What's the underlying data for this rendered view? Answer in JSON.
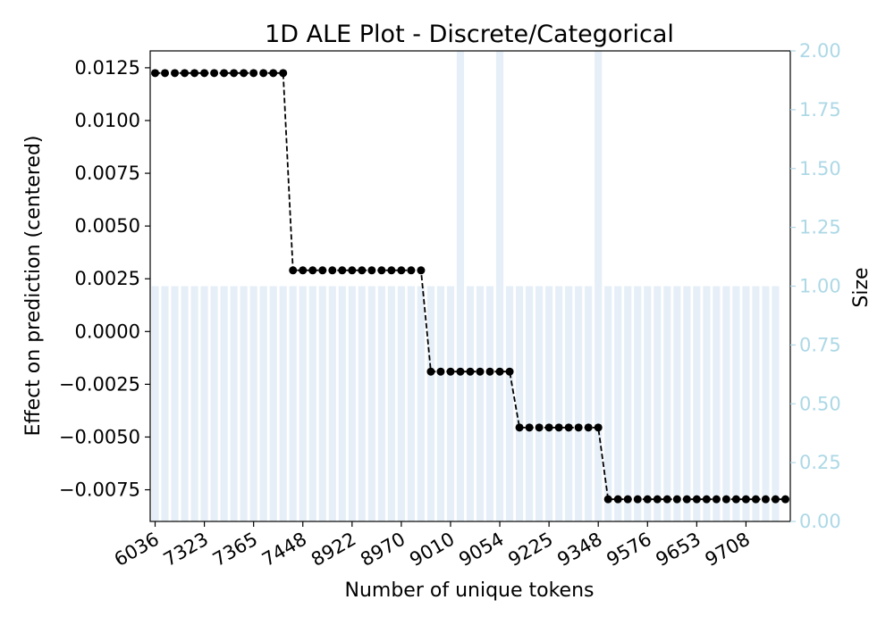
{
  "chart_data": {
    "type": "line",
    "title": "1D ALE Plot - Discrete/Categorical",
    "xlabel": "Number of unique tokens",
    "ylabel": "Effect on prediction (centered)",
    "y2label": "Size",
    "x_tick_labels": [
      "6036",
      "7323",
      "7365",
      "7448",
      "8922",
      "8970",
      "9010",
      "9054",
      "9225",
      "9348",
      "9576",
      "9653",
      "9708"
    ],
    "ylim": [
      -0.009,
      0.0133
    ],
    "y_ticks": [
      -0.0075,
      -0.005,
      -0.0025,
      0.0,
      0.0025,
      0.005,
      0.0075,
      0.01,
      0.0125
    ],
    "y_tick_labels": [
      "−0.0075",
      "−0.0050",
      "−0.0025",
      "0.0000",
      "0.0025",
      "0.0050",
      "0.0075",
      "0.0100",
      "0.0125"
    ],
    "y2lim": [
      0,
      2.0
    ],
    "y2_ticks": [
      0.0,
      0.25,
      0.5,
      0.75,
      1.0,
      1.25,
      1.5,
      1.75,
      2.0
    ],
    "y2_tick_labels": [
      "0.00",
      "0.25",
      "0.50",
      "0.75",
      "1.00",
      "1.25",
      "1.50",
      "1.75",
      "2.00"
    ],
    "series": [
      {
        "type": "line",
        "values": [
          0.01225,
          0.01225,
          0.01225,
          0.01225,
          0.01225,
          0.01225,
          0.01225,
          0.01225,
          0.01225,
          0.01225,
          0.01225,
          0.01225,
          0.01225,
          0.01225,
          0.0029,
          0.0029,
          0.0029,
          0.0029,
          0.0029,
          0.0029,
          0.0029,
          0.0029,
          0.0029,
          0.0029,
          0.0029,
          0.0029,
          0.0029,
          0.0029,
          -0.0019,
          -0.0019,
          -0.0019,
          -0.0019,
          -0.0019,
          -0.0019,
          -0.0019,
          -0.0019,
          -0.0019,
          -0.00455,
          -0.00455,
          -0.00455,
          -0.00455,
          -0.00455,
          -0.00455,
          -0.00455,
          -0.00455,
          -0.00455,
          -0.00795,
          -0.00795,
          -0.00795,
          -0.00795,
          -0.00795,
          -0.00795,
          -0.00795,
          -0.00795,
          -0.00795,
          -0.00795,
          -0.00795,
          -0.00795,
          -0.00795,
          -0.00795,
          -0.00795,
          -0.00795,
          -0.00795,
          -0.00795,
          -0.00795
        ]
      },
      {
        "type": "bar",
        "axis": "right",
        "values": [
          1,
          1,
          1,
          1,
          1,
          1,
          1,
          1,
          1,
          1,
          1,
          1,
          1,
          1,
          1,
          1,
          1,
          1,
          1,
          1,
          1,
          1,
          1,
          1,
          1,
          1,
          1,
          1,
          1,
          1,
          1,
          2,
          1,
          1,
          1,
          2,
          1,
          1,
          1,
          1,
          1,
          1,
          1,
          1,
          1,
          2,
          1,
          1,
          1,
          1,
          1,
          1,
          1,
          1,
          1,
          1,
          1,
          1,
          1,
          1,
          1,
          1,
          1,
          1
        ]
      }
    ],
    "colors": {
      "line": "#000000",
      "bars": "#e6eff7",
      "right_axis": "#add8e6"
    }
  }
}
